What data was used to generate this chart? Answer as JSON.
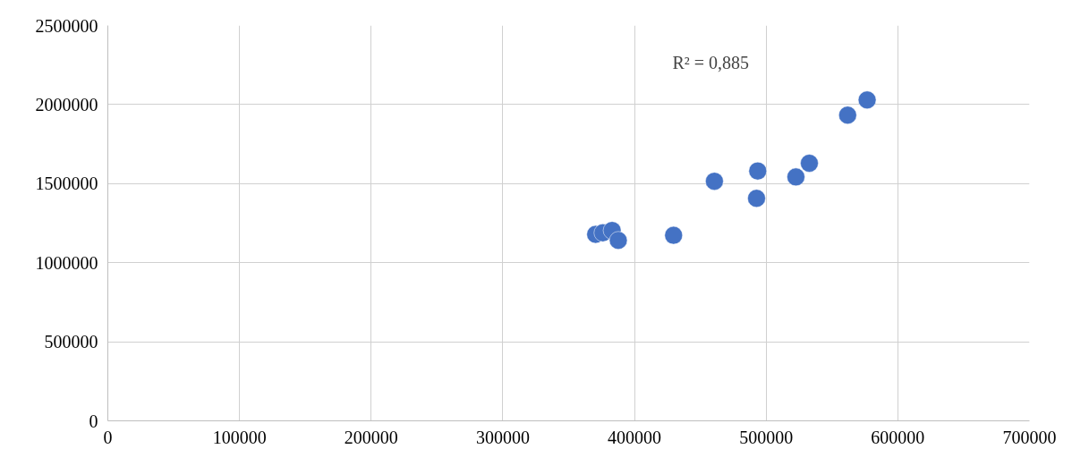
{
  "chart_data": {
    "type": "scatter",
    "annotations": [
      "R² = 0,885"
    ],
    "x": [
      370500,
      376000,
      383000,
      387700,
      429700,
      460700,
      493600,
      492700,
      522600,
      532800,
      561900,
      576700
    ],
    "series": [
      {
        "color": "#4472c4",
        "values": [
          1179000,
          1189000,
          1204000,
          1141000,
          1173000,
          1515000,
          1580000,
          1407000,
          1542000,
          1629000,
          1933000,
          2029000
        ]
      }
    ],
    "xlim": [
      0,
      700000
    ],
    "ylim": [
      0,
      2500000
    ],
    "xticks": [
      0,
      100000,
      200000,
      300000,
      400000,
      500000,
      600000,
      700000
    ],
    "yticks": [
      0,
      500000,
      1000000,
      1500000,
      2000000,
      2500000
    ],
    "grid": true,
    "marker": "circle"
  }
}
